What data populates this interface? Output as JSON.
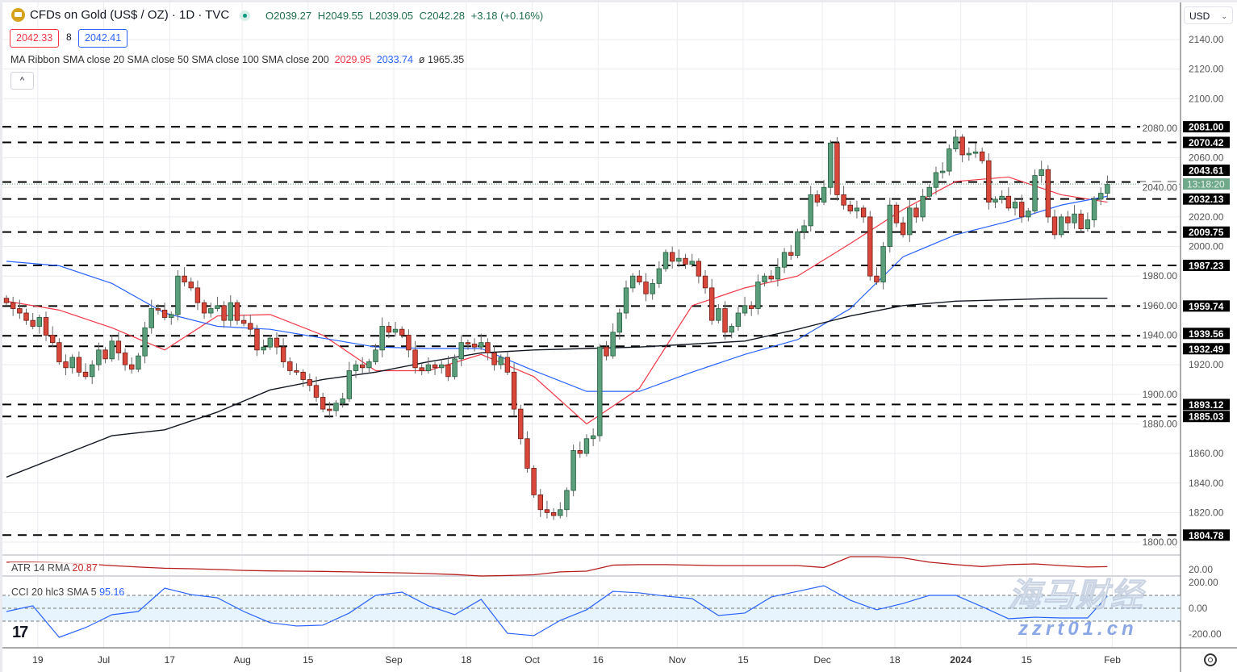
{
  "header": {
    "symbol_title": "CFDs on Gold (US$ / OZ) · 1D · TVC",
    "open": "O2039.27",
    "high": "H2049.55",
    "low": "L2039.05",
    "close": "C2042.28",
    "change": "+3.18 (+0.16%)",
    "sell_price": "2042.33",
    "spread": "8",
    "buy_price": "2042.41",
    "ma_legend": "MA Ribbon SMA close 20 SMA close 50 SMA close 100 SMA close 200",
    "ma_value_1": "2029.95",
    "ma_value_2": "2033.74",
    "ma_value_3": "ø 1965.35",
    "collapse_label": "^",
    "currency": "USD"
  },
  "indicators": {
    "atr_label": "ATR 14 RMA",
    "atr_value": "20.87",
    "cci_label": "CCI 20 hlc3 SMA 5",
    "cci_value": "95.16"
  },
  "countdown": "13:18:20",
  "watermark": {
    "cn": "海马财经",
    "url": "zzrt01.cn"
  },
  "colors": {
    "up": "#5b9e7b",
    "down": "#d9473a",
    "sma20": "#f23645",
    "sma50": "#2962ff",
    "sma200": "#131722",
    "atr": "#b71c1c",
    "cci": "#2962ff",
    "countdown_bg": "#6fa88a"
  },
  "chart_data": [
    {
      "type": "candlestick",
      "title": "CFDs on Gold (US$ / OZ) · 1D · TVC",
      "ylim": [
        1790,
        2155
      ],
      "y_ticks": [
        "2140.00",
        "2120.00",
        "2100.00",
        "2080.00",
        "2060.00",
        "2040.00",
        "2020.00",
        "2000.00",
        "1980.00",
        "1960.00",
        "1940.00",
        "1920.00",
        "1900.00",
        "1880.00",
        "1860.00",
        "1840.00",
        "1820.00",
        "1800.00"
      ],
      "x_ticks": [
        {
          "label": "19",
          "bar": 5
        },
        {
          "label": "Jul",
          "bar": 15
        },
        {
          "label": "17",
          "bar": 25
        },
        {
          "label": "Aug",
          "bar": 36
        },
        {
          "label": "15",
          "bar": 46
        },
        {
          "label": "Sep",
          "bar": 59
        },
        {
          "label": "18",
          "bar": 70
        },
        {
          "label": "Oct",
          "bar": 80
        },
        {
          "label": "16",
          "bar": 90
        },
        {
          "label": "Nov",
          "bar": 102
        },
        {
          "label": "15",
          "bar": 112
        },
        {
          "label": "Dec",
          "bar": 124
        },
        {
          "label": "18",
          "bar": 135
        },
        {
          "label": "2024",
          "bar": 145,
          "bold": true
        },
        {
          "label": "15",
          "bar": 155
        },
        {
          "label": "Feb",
          "bar": 168
        }
      ],
      "first_open": 1965,
      "closes": [
        1962,
        1958,
        1955,
        1950,
        1946,
        1952,
        1940,
        1935,
        1922,
        1918,
        1925,
        1915,
        1912,
        1920,
        1930,
        1924,
        1936,
        1928,
        1920,
        1917,
        1926,
        1945,
        1958,
        1957,
        1952,
        1954,
        1980,
        1976,
        1972,
        1962,
        1955,
        1958,
        1960,
        1950,
        1962,
        1950,
        1948,
        1944,
        1930,
        1932,
        1938,
        1932,
        1922,
        1916,
        1915,
        1910,
        1906,
        1898,
        1890,
        1889,
        1894,
        1897,
        1916,
        1920,
        1918,
        1922,
        1930,
        1946,
        1942,
        1944,
        1940,
        1930,
        1918,
        1916,
        1920,
        1918,
        1920,
        1912,
        1924,
        1935,
        1934,
        1932,
        1935,
        1928,
        1920,
        1925,
        1915,
        1890,
        1870,
        1850,
        1832,
        1822,
        1820,
        1818,
        1822,
        1835,
        1862,
        1860,
        1870,
        1872,
        1932,
        1926,
        1942,
        1955,
        1972,
        1980,
        1976,
        1968,
        1975,
        1985,
        1996,
        1990,
        1992,
        1988,
        1990,
        1980,
        1972,
        1950,
        1958,
        1942,
        1946,
        1955,
        1960,
        1958,
        1976,
        1980,
        1978,
        1986,
        1996,
        1994,
        2010,
        2014,
        2035,
        2030,
        2040,
        2070,
        2035,
        2028,
        2024,
        2026,
        2020,
        1980,
        1976,
        2000,
        2028,
        2016,
        2008,
        2026,
        2020,
        2034,
        2040,
        2050,
        2051,
        2066,
        2074,
        2062,
        2063,
        2064,
        2058,
        2030,
        2032,
        2034,
        2026,
        2030,
        2020,
        2024,
        2048,
        2052,
        2020,
        2008,
        2020,
        2016,
        2022,
        2012,
        2018,
        2032,
        2036,
        2042
      ],
      "ma_sample_every_bars": 8,
      "series": [
        {
          "name": "SMA close 20",
          "values": [
            1963,
            1957,
            1945,
            1930,
            1953,
            1954,
            1940,
            1916,
            1916,
            1927,
            1912,
            1880,
            1904,
            1960,
            1972,
            1980,
            2002,
            2025,
            2044,
            2047,
            2035,
            2030
          ]
        },
        {
          "name": "SMA close 50",
          "values": [
            1990,
            1987,
            1975,
            1955,
            1946,
            1944,
            1938,
            1932,
            1931,
            1931,
            1916,
            1902,
            1902,
            1915,
            1927,
            1937,
            1958,
            1993,
            2008,
            2017,
            2028,
            2034
          ]
        },
        {
          "name": "SMA close 200",
          "values": [
            1844,
            1858,
            1872,
            1876,
            1888,
            1903,
            1910,
            1915,
            1922,
            1928,
            1930,
            1931,
            1932,
            1934,
            1936,
            1944,
            1953,
            1960,
            1963,
            1964,
            1965,
            1965
          ]
        }
      ],
      "levels": [
        "2081.00",
        "2070.42",
        "2043.61",
        "2032.13",
        "2009.75",
        "1987.23",
        "1959.74",
        "1939.56",
        "1932.49",
        "1893.12",
        "1885.03",
        "1804.78"
      ],
      "last_price": 2042.28
    },
    {
      "type": "line",
      "title": "ATR 14 RMA",
      "y_ticks": [
        "20.00"
      ],
      "sample_every_bars": 4,
      "values": [
        22.7,
        22.7,
        22.5,
        22.0,
        21.3,
        20.7,
        20.2,
        20.0,
        19.7,
        19.3,
        19.1,
        19.0,
        18.9,
        18.7,
        18.5,
        18.3,
        18.0,
        17.6,
        17.0,
        17.2,
        17.5,
        18.7,
        19.0,
        21.5,
        21.7,
        21.7,
        21.5,
        21.3,
        21.3,
        21.3,
        21.3,
        20.5,
        25.0,
        25.0,
        24.5,
        22.7,
        21.7,
        20.9,
        21.7,
        22.0,
        21.3,
        20.7,
        20.87
      ]
    },
    {
      "type": "line",
      "title": "CCI 20 hlc3 SMA 5",
      "y_ticks": [
        "200.00",
        "0.00",
        "-200.00"
      ],
      "band": [
        -100,
        100
      ],
      "sample_every_bars": 4,
      "values": [
        -25,
        19,
        -225,
        -150,
        -50,
        -25,
        156,
        106,
        81,
        -25,
        -112,
        -137,
        -131,
        -37,
        100,
        125,
        19,
        -50,
        69,
        -194,
        -212,
        -94,
        -12,
        131,
        119,
        94,
        75,
        -56,
        -37,
        87,
        131,
        175,
        62,
        -12,
        37,
        100,
        100,
        12,
        -81,
        -69,
        -75,
        -75,
        95.16
      ]
    }
  ]
}
